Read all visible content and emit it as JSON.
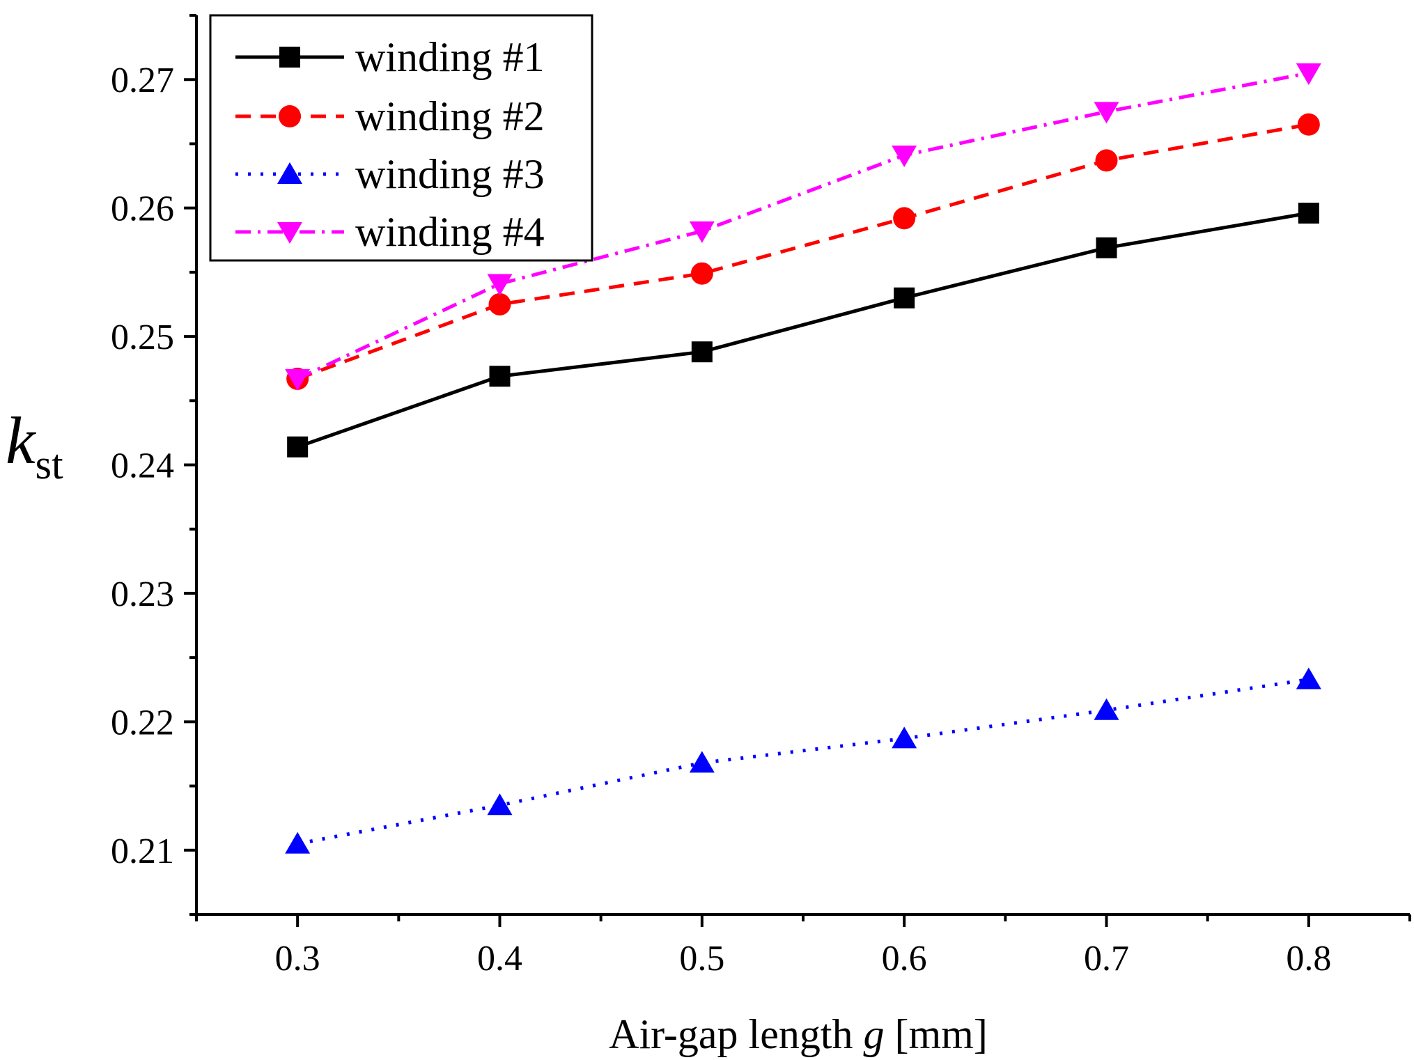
{
  "chart_data": {
    "type": "line",
    "title": "",
    "xlabel": {
      "prefix": "Air-gap length ",
      "var": "g",
      "suffix": " [mm]"
    },
    "ylabel": {
      "main": "k",
      "sub": "st"
    },
    "xlim": [
      0.25,
      0.85
    ],
    "ylim": [
      0.205,
      0.275
    ],
    "x": [
      0.3,
      0.4,
      0.5,
      0.6,
      0.7,
      0.8
    ],
    "xtick_labels": [
      "0.3",
      "0.4",
      "0.5",
      "0.6",
      "0.7",
      "0.8"
    ],
    "ytick_values": [
      0.21,
      0.22,
      0.23,
      0.24,
      0.25,
      0.26,
      0.27
    ],
    "ytick_labels": [
      "0.21",
      "0.22",
      "0.23",
      "0.24",
      "0.25",
      "0.26",
      "0.27"
    ],
    "legend_position": "top-left",
    "grid": false,
    "series": [
      {
        "name": "winding #1",
        "values": [
          0.2414,
          0.2469,
          0.2488,
          0.253,
          0.2569,
          0.2596
        ],
        "color": "#000000",
        "marker": "square",
        "line": "solid"
      },
      {
        "name": "winding #2",
        "values": [
          0.2467,
          0.2525,
          0.2549,
          0.2592,
          0.2637,
          0.2665
        ],
        "color": "#ff0000",
        "marker": "circle",
        "line": "dash"
      },
      {
        "name": "winding #3",
        "values": [
          0.2105,
          0.2135,
          0.2168,
          0.2187,
          0.2209,
          0.2233
        ],
        "color": "#0000ff",
        "marker": "triangle-up",
        "line": "dot"
      },
      {
        "name": "winding #4",
        "values": [
          0.2467,
          0.2541,
          0.2582,
          0.2641,
          0.2675,
          0.2705
        ],
        "color": "#ff00ff",
        "marker": "triangle-down",
        "line": "dashdot"
      }
    ]
  }
}
